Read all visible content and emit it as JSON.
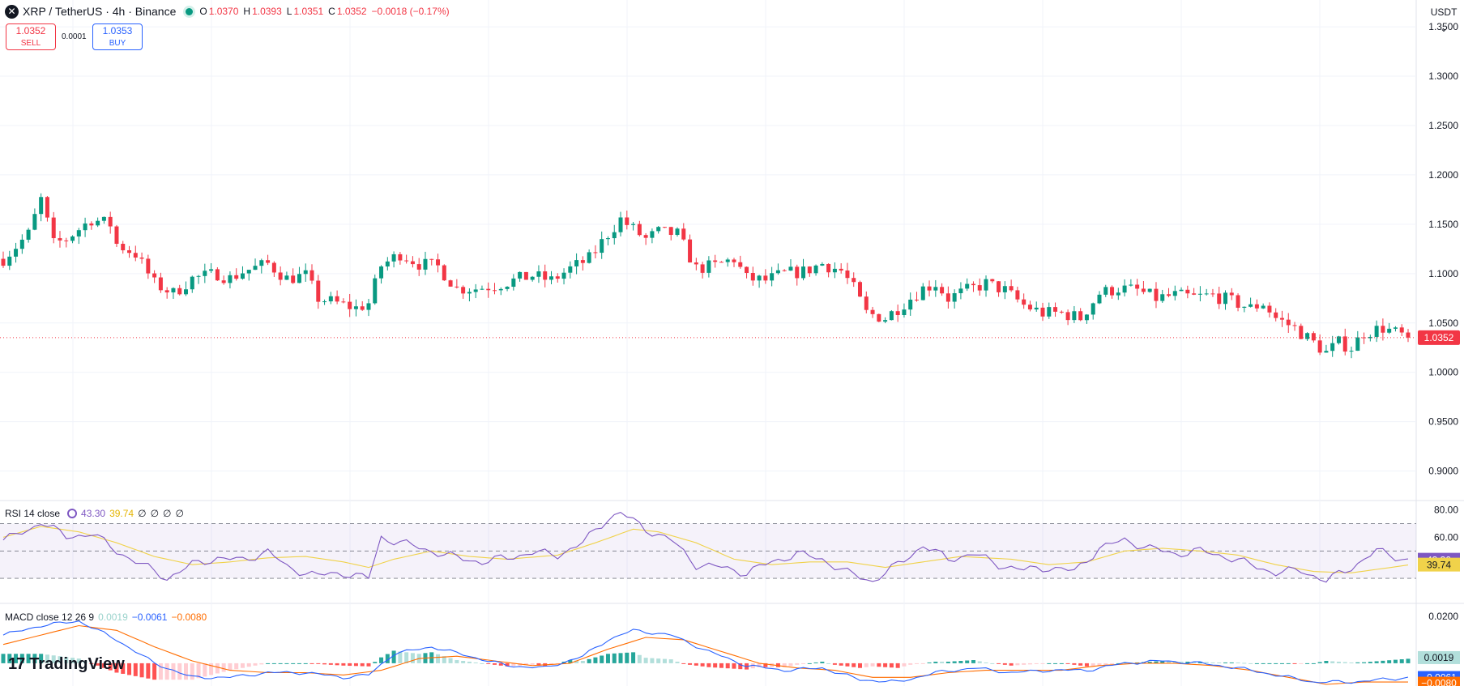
{
  "header": {
    "symbol": "XRP / TetherUS · 4h · Binance",
    "o_label": "O",
    "o_value": "1.0370",
    "h_label": "H",
    "h_value": "1.0393",
    "l_label": "L",
    "l_value": "1.0351",
    "c_label": "C",
    "c_value": "1.0352",
    "change": "−0.0018 (−0.17%)"
  },
  "trade": {
    "sell_price": "1.0352",
    "sell_label": "SELL",
    "spread": "0.0001",
    "buy_price": "1.0353",
    "buy_label": "BUY"
  },
  "currency": "USDT",
  "currency_chevron": "chevron-down-icon",
  "branding": {
    "name": "TradingView",
    "mark": "17"
  },
  "colors": {
    "up": "#089981",
    "down": "#f23645",
    "rsi": "#7e57c2",
    "rsi_ma": "#f0d24a",
    "macd": "#2962ff",
    "signal": "#ff6d00"
  },
  "chart_data": [
    {
      "type": "candlestick",
      "title": "XRP / TetherUS · 4h · Binance",
      "y_ticks": [
        "1.3500",
        "1.3000",
        "1.2500",
        "1.2000",
        "1.1500",
        "1.1000",
        "1.0500",
        "1.0000",
        "0.9500",
        "0.9000"
      ],
      "ylim": [
        0.88,
        1.355
      ],
      "last_price_label": "1.0352",
      "last_price": 1.0352,
      "close_path": [
        [
          0,
          1.115
        ],
        [
          4,
          1.14
        ],
        [
          6,
          1.175
        ],
        [
          8,
          1.13
        ],
        [
          10,
          1.135
        ],
        [
          14,
          1.155
        ],
        [
          17,
          1.15
        ],
        [
          18,
          1.13
        ],
        [
          21,
          1.12
        ],
        [
          24,
          1.09
        ],
        [
          27,
          1.08
        ],
        [
          30,
          1.095
        ],
        [
          34,
          1.1
        ],
        [
          36,
          1.095
        ],
        [
          38,
          1.102
        ],
        [
          42,
          1.11
        ],
        [
          45,
          1.095
        ],
        [
          48,
          1.098
        ],
        [
          50,
          1.075
        ],
        [
          53,
          1.07
        ],
        [
          56,
          1.065
        ],
        [
          58,
          1.07
        ],
        [
          60,
          1.108
        ],
        [
          63,
          1.12
        ],
        [
          66,
          1.11
        ],
        [
          69,
          1.107
        ],
        [
          72,
          1.085
        ],
        [
          75,
          1.085
        ],
        [
          78,
          1.088
        ],
        [
          81,
          1.093
        ],
        [
          84,
          1.098
        ],
        [
          87,
          1.093
        ],
        [
          90,
          1.105
        ],
        [
          93,
          1.115
        ],
        [
          96,
          1.14
        ],
        [
          98,
          1.155
        ],
        [
          100,
          1.145
        ],
        [
          102,
          1.135
        ],
        [
          104,
          1.142
        ],
        [
          107,
          1.14
        ],
        [
          110,
          1.105
        ],
        [
          113,
          1.108
        ],
        [
          116,
          1.115
        ],
        [
          118,
          1.095
        ],
        [
          121,
          1.093
        ],
        [
          124,
          1.1
        ],
        [
          127,
          1.102
        ],
        [
          130,
          1.11
        ],
        [
          133,
          1.103
        ],
        [
          135,
          1.085
        ],
        [
          137,
          1.06
        ],
        [
          140,
          1.055
        ],
        [
          143,
          1.07
        ],
        [
          146,
          1.085
        ],
        [
          148,
          1.09
        ],
        [
          150,
          1.075
        ],
        [
          153,
          1.083
        ],
        [
          156,
          1.09
        ],
        [
          159,
          1.083
        ],
        [
          162,
          1.068
        ],
        [
          165,
          1.06
        ],
        [
          168,
          1.06
        ],
        [
          171,
          1.055
        ],
        [
          174,
          1.08
        ],
        [
          177,
          1.085
        ],
        [
          180,
          1.083
        ],
        [
          183,
          1.075
        ],
        [
          186,
          1.078
        ],
        [
          189,
          1.076
        ],
        [
          192,
          1.078
        ],
        [
          195,
          1.072
        ],
        [
          198,
          1.065
        ],
        [
          200,
          1.07
        ],
        [
          202,
          1.055
        ],
        [
          205,
          1.045
        ],
        [
          208,
          1.03
        ],
        [
          210,
          1.02
        ],
        [
          212,
          1.03
        ],
        [
          214,
          1.025
        ],
        [
          216,
          1.04
        ],
        [
          219,
          1.045
        ],
        [
          221,
          1.04
        ],
        [
          223,
          1.0352
        ]
      ],
      "n_candles": 224
    },
    {
      "type": "line",
      "title": "RSI 14 close",
      "legend": [
        "43.30",
        "39.74",
        "∅",
        "∅",
        "∅",
        "∅"
      ],
      "y_ticks": [
        "80.00",
        "60.00"
      ],
      "ylim": [
        17,
        81
      ],
      "bands": [
        70,
        50,
        30
      ],
      "series": [
        {
          "name": "RSI",
          "last_label": "43.30",
          "last": 43.3,
          "path": [
            [
              0,
              58
            ],
            [
              4,
              65
            ],
            [
              6,
              72
            ],
            [
              10,
              60
            ],
            [
              14,
              63
            ],
            [
              18,
              50
            ],
            [
              22,
              40
            ],
            [
              26,
              30
            ],
            [
              30,
              40
            ],
            [
              34,
              45
            ],
            [
              38,
              43
            ],
            [
              42,
              50
            ],
            [
              45,
              38
            ],
            [
              50,
              32
            ],
            [
              54,
              34
            ],
            [
              58,
              30
            ],
            [
              60,
              60
            ],
            [
              64,
              55
            ],
            [
              68,
              50
            ],
            [
              72,
              45
            ],
            [
              76,
              42
            ],
            [
              80,
              45
            ],
            [
              84,
              49
            ],
            [
              88,
              47
            ],
            [
              92,
              56
            ],
            [
              96,
              74
            ],
            [
              98,
              78
            ],
            [
              102,
              66
            ],
            [
              106,
              58
            ],
            [
              110,
              40
            ],
            [
              114,
              38
            ],
            [
              118,
              34
            ],
            [
              122,
              42
            ],
            [
              126,
              48
            ],
            [
              130,
              44
            ],
            [
              134,
              34
            ],
            [
              138,
              28
            ],
            [
              142,
              40
            ],
            [
              146,
              54
            ],
            [
              150,
              44
            ],
            [
              154,
              48
            ],
            [
              158,
              40
            ],
            [
              162,
              36
            ],
            [
              166,
              38
            ],
            [
              170,
              35
            ],
            [
              174,
              52
            ],
            [
              178,
              58
            ],
            [
              182,
              52
            ],
            [
              186,
              48
            ],
            [
              190,
              50
            ],
            [
              194,
              46
            ],
            [
              198,
              40
            ],
            [
              202,
              34
            ],
            [
              206,
              36
            ],
            [
              210,
              28
            ],
            [
              214,
              38
            ],
            [
              218,
              50
            ],
            [
              223,
              43.3
            ]
          ]
        },
        {
          "name": "MA",
          "last_label": "39.74",
          "last": 39.74,
          "path": [
            [
              0,
              60
            ],
            [
              6,
              68
            ],
            [
              12,
              64
            ],
            [
              18,
              56
            ],
            [
              24,
              46
            ],
            [
              30,
              40
            ],
            [
              36,
              42
            ],
            [
              42,
              45
            ],
            [
              48,
              46
            ],
            [
              54,
              42
            ],
            [
              58,
              38
            ],
            [
              62,
              44
            ],
            [
              68,
              50
            ],
            [
              74,
              46
            ],
            [
              80,
              44
            ],
            [
              88,
              47
            ],
            [
              94,
              56
            ],
            [
              100,
              66
            ],
            [
              104,
              64
            ],
            [
              110,
              56
            ],
            [
              116,
              44
            ],
            [
              122,
              40
            ],
            [
              128,
              42
            ],
            [
              134,
              42
            ],
            [
              140,
              38
            ],
            [
              146,
              42
            ],
            [
              152,
              46
            ],
            [
              160,
              44
            ],
            [
              166,
              40
            ],
            [
              172,
              42
            ],
            [
              178,
              50
            ],
            [
              184,
              52
            ],
            [
              190,
              50
            ],
            [
              196,
              47
            ],
            [
              202,
              40
            ],
            [
              208,
              35
            ],
            [
              214,
              34
            ],
            [
              223,
              39.74
            ]
          ]
        }
      ]
    },
    {
      "type": "bar",
      "title": "MACD close 12 26 9",
      "legend": [
        "0.0019",
        "−0.0061",
        "−0.0080"
      ],
      "y_ticks": [
        "0.0200"
      ],
      "ylim": [
        -0.009,
        0.021
      ],
      "series": [
        {
          "name": "Histogram",
          "last_label": "0.0019",
          "last": 0.0019
        },
        {
          "name": "MACD",
          "last_label": "−0.0061",
          "last": -0.0061,
          "path": [
            [
              0,
              0.012
            ],
            [
              6,
              0.016
            ],
            [
              12,
              0.018
            ],
            [
              18,
              0.01
            ],
            [
              24,
              0.0
            ],
            [
              30,
              -0.006
            ],
            [
              36,
              -0.006
            ],
            [
              42,
              -0.004
            ],
            [
              48,
              -0.004
            ],
            [
              54,
              -0.006
            ],
            [
              58,
              -0.005
            ],
            [
              62,
              0.004
            ],
            [
              68,
              0.007
            ],
            [
              74,
              0.003
            ],
            [
              80,
              -0.001
            ],
            [
              86,
              -0.002
            ],
            [
              92,
              0.003
            ],
            [
              96,
              0.01
            ],
            [
              100,
              0.014
            ],
            [
              106,
              0.012
            ],
            [
              112,
              0.005
            ],
            [
              118,
              -0.001
            ],
            [
              124,
              -0.003
            ],
            [
              130,
              -0.002
            ],
            [
              136,
              -0.007
            ],
            [
              142,
              -0.008
            ],
            [
              148,
              -0.004
            ],
            [
              154,
              -0.002
            ],
            [
              160,
              -0.004
            ],
            [
              166,
              -0.003
            ],
            [
              172,
              -0.003
            ],
            [
              178,
              0.0
            ],
            [
              184,
              0.001
            ],
            [
              190,
              0.0
            ],
            [
              196,
              -0.002
            ],
            [
              202,
              -0.005
            ],
            [
              208,
              -0.008
            ],
            [
              214,
              -0.008
            ],
            [
              223,
              -0.0061
            ]
          ]
        },
        {
          "name": "Signal",
          "last_label": "−0.0080",
          "last": -0.008,
          "path": [
            [
              0,
              0.008
            ],
            [
              6,
              0.012
            ],
            [
              12,
              0.016
            ],
            [
              18,
              0.014
            ],
            [
              24,
              0.007
            ],
            [
              30,
              0.001
            ],
            [
              36,
              -0.003
            ],
            [
              42,
              -0.004
            ],
            [
              48,
              -0.004
            ],
            [
              54,
              -0.005
            ],
            [
              60,
              -0.003
            ],
            [
              66,
              0.002
            ],
            [
              72,
              0.003
            ],
            [
              78,
              0.001
            ],
            [
              84,
              -0.001
            ],
            [
              90,
              0.0
            ],
            [
              96,
              0.006
            ],
            [
              102,
              0.011
            ],
            [
              108,
              0.01
            ],
            [
              114,
              0.005
            ],
            [
              120,
              0.0
            ],
            [
              126,
              -0.002
            ],
            [
              132,
              -0.003
            ],
            [
              138,
              -0.006
            ],
            [
              144,
              -0.006
            ],
            [
              150,
              -0.004
            ],
            [
              156,
              -0.003
            ],
            [
              162,
              -0.003
            ],
            [
              168,
              -0.003
            ],
            [
              174,
              -0.001
            ],
            [
              180,
              0.0
            ],
            [
              186,
              0.0
            ],
            [
              192,
              -0.001
            ],
            [
              198,
              -0.003
            ],
            [
              204,
              -0.006
            ],
            [
              210,
              -0.009
            ],
            [
              216,
              -0.008
            ],
            [
              223,
              -0.008
            ]
          ]
        }
      ]
    }
  ]
}
